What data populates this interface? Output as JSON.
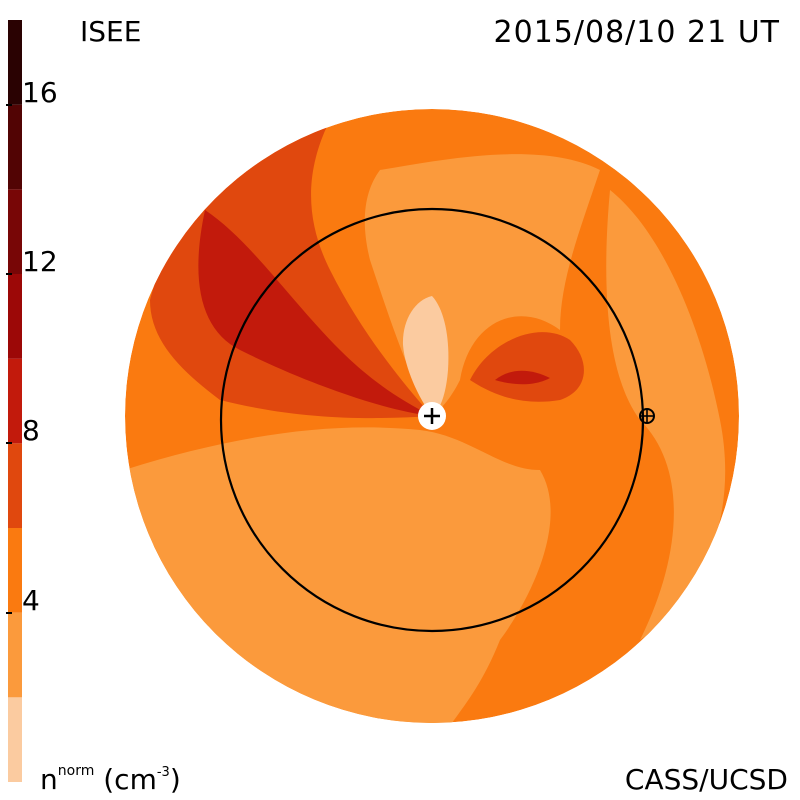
{
  "header": {
    "org": "ISEE",
    "date": "2015/08/10 21 UT"
  },
  "footer": {
    "credit": "CASS/UCSD",
    "unit_symbol": "n",
    "unit_sup": "norm",
    "unit_paren": "(cm",
    "unit_exp": "-3",
    "unit_close": ")"
  },
  "colorbar": {
    "min": 0,
    "max": 18,
    "levels": [
      {
        "from": 0,
        "to": 2,
        "color": "#fbcba0"
      },
      {
        "from": 2,
        "to": 4,
        "color": "#fb9a3c"
      },
      {
        "from": 4,
        "to": 6,
        "color": "#fa7a10"
      },
      {
        "from": 6,
        "to": 8,
        "color": "#e0480e"
      },
      {
        "from": 8,
        "to": 10,
        "color": "#c21a0c"
      },
      {
        "from": 10,
        "to": 12,
        "color": "#9c0807"
      },
      {
        "from": 12,
        "to": 14,
        "color": "#780606"
      },
      {
        "from": 14,
        "to": 16,
        "color": "#520404"
      },
      {
        "from": 16,
        "to": 18,
        "color": "#2a0202"
      }
    ],
    "ticks": [
      {
        "value": 4,
        "label": "4"
      },
      {
        "value": 8,
        "label": "8"
      },
      {
        "value": 12,
        "label": "12"
      },
      {
        "value": 16,
        "label": "16"
      }
    ]
  },
  "colors": {
    "base": "#fa7a10",
    "light": "#fb9a3c",
    "pale": "#fbcba0",
    "mid": "#e0480e",
    "dark": "#c21a0c",
    "darker": "#9c0807"
  },
  "symbols": {
    "sun": "sun-plus-symbol",
    "earth": "earth-symbol"
  }
}
